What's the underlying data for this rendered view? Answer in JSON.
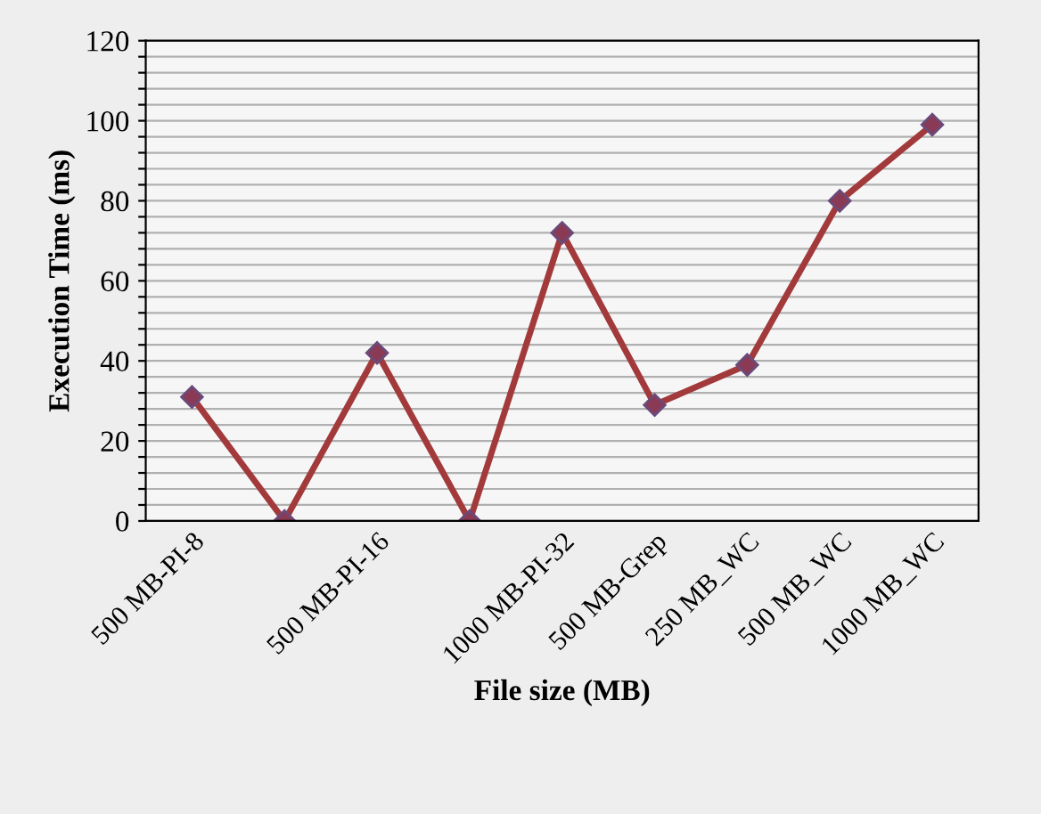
{
  "chart_data": {
    "type": "line",
    "xlabel": "File size (MB)",
    "ylabel": "Execution Time (ms)",
    "categories": [
      "500 MB-PI-8",
      null,
      "500 MB-PI-16",
      null,
      "1000 MB-PI-32",
      "500 MB-Grep",
      "250 MB_WC",
      "500 MB_WC",
      "1000 MB_WC"
    ],
    "series": [
      {
        "color": "#a23a3c",
        "values": [
          31,
          0,
          42,
          0,
          72,
          29,
          39,
          80,
          99
        ]
      }
    ],
    "ylim": [
      0,
      120
    ],
    "yticks": [
      0,
      {
        "value": 4,
        "label": null
      },
      {
        "value": 8,
        "label": null
      },
      {
        "value": 12,
        "label": null
      },
      {
        "value": 16,
        "label": null
      },
      20,
      {
        "value": 24,
        "label": null
      },
      {
        "value": 28,
        "label": null
      },
      {
        "value": 32,
        "label": null
      },
      {
        "value": 36,
        "label": null
      },
      40,
      {
        "value": 44,
        "label": null
      },
      {
        "value": 48,
        "label": null
      },
      {
        "value": 52,
        "label": null
      },
      {
        "value": 56,
        "label": null
      },
      60,
      {
        "value": 64,
        "label": null
      },
      {
        "value": 68,
        "label": null
      },
      {
        "value": 72,
        "label": null
      },
      {
        "value": 76,
        "label": null
      },
      80,
      {
        "value": 84,
        "label": null
      },
      {
        "value": 88,
        "label": null
      },
      {
        "value": 92,
        "label": null
      },
      {
        "value": 96,
        "label": null
      },
      100,
      {
        "value": 104,
        "label": null
      },
      {
        "value": 108,
        "label": null
      },
      {
        "value": 112,
        "label": null
      },
      {
        "value": 116,
        "label": null
      },
      120
    ],
    "grid": "y",
    "marker": "diamond",
    "line_style": "solid",
    "legend": false
  }
}
